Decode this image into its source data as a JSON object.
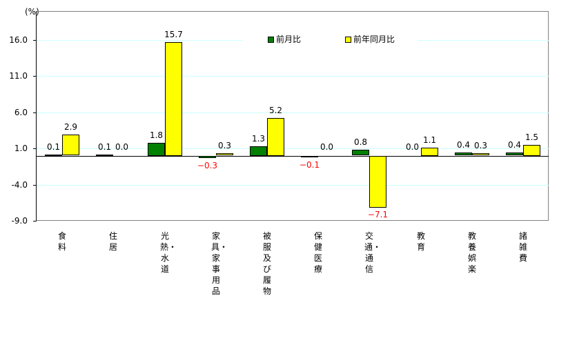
{
  "chart_data": {
    "type": "bar",
    "title": "",
    "xlabel": "",
    "ylabel": "(%)",
    "ylim": [
      -9.0,
      20.0
    ],
    "yticks": [
      "16.0",
      "11.0",
      "6.0",
      "1.0",
      "-4.0",
      "-9.0"
    ],
    "grid": true,
    "legend_position": "top-center",
    "categories": [
      "食料",
      "住居",
      "光熱・水道",
      "家具・家事用品",
      "被服及び履物",
      "保健医療",
      "交通・通信",
      "教育",
      "教養娯楽",
      "諸雑費"
    ],
    "series": [
      {
        "name": "前月比",
        "color": "#008000",
        "values": [
          0.1,
          0.1,
          1.8,
          -0.3,
          1.3,
          -0.1,
          0.8,
          0.0,
          0.4,
          0.4
        ]
      },
      {
        "name": "前年同月比",
        "color": "#ffff00",
        "values": [
          2.9,
          0.0,
          15.7,
          0.3,
          5.2,
          0.0,
          -7.1,
          1.1,
          0.3,
          1.5
        ]
      }
    ],
    "value_labels": {
      "前月比": [
        "0.1",
        "0.1",
        "1.8",
        "-0.3",
        "1.3",
        "-0.1",
        "0.8",
        "0.0",
        "0.4",
        "0.4"
      ],
      "前年同月比": [
        "2.9",
        "0.0",
        "15.7",
        "0.3",
        "5.2",
        "0.0",
        "-7.1",
        "1.1",
        "0.3",
        "1.5"
      ]
    },
    "negative_label_color": "#ff0000",
    "gridline_color": "#ccffff"
  },
  "axis": {
    "unit_label": "(%)"
  },
  "legend": {
    "items": [
      {
        "label": "前月比",
        "color": "#008000"
      },
      {
        "label": "前年同月比",
        "color": "#ffff00"
      }
    ]
  }
}
